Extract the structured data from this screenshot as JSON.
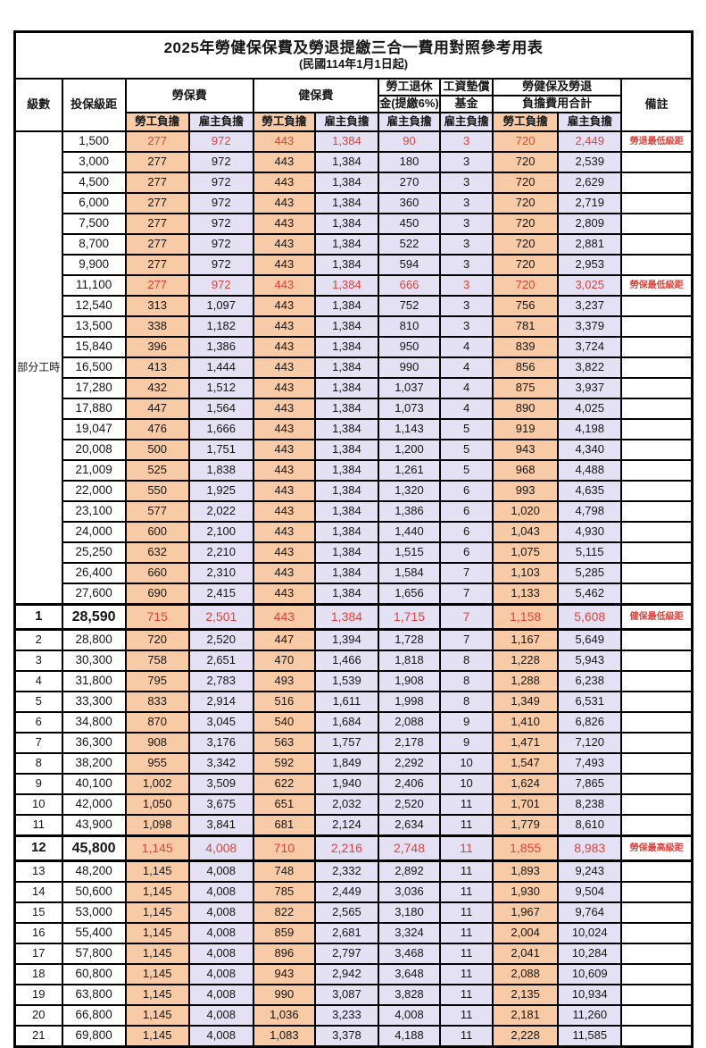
{
  "title": "2025年勞健保保費及勞退提繳三合一費用對照參考用表",
  "subtitle": "(民國114年1月1日起)",
  "colors": {
    "employee_fill": "#F8CBA6",
    "employer_fill": "#E3E1F3",
    "highlight_red": "#E0433D",
    "border": "#000000"
  },
  "header": {
    "level": "級數",
    "bracket": "投保級距",
    "labor_insurance": "勞保費",
    "health_insurance": "健保費",
    "pension_line1": "勞工退休",
    "pension_line2": "金(提繳6%)",
    "wage_fund_line1": "工資墊償",
    "wage_fund_line2": "基金",
    "total_line1": "勞健保及勞退",
    "total_line2": "負擔費用合計",
    "employee_share": "勞工負擔",
    "employer_share": "雇主負擔",
    "remarks": "備註"
  },
  "part_time_label": "部分工時",
  "part_time_row_count": 23,
  "rows": [
    {
      "level": "",
      "bracket": "1,500",
      "values": [
        "277",
        "972",
        "443",
        "1,384",
        "90",
        "3",
        "720",
        "2,449"
      ],
      "note": "勞退最低級距",
      "red": true,
      "big": false
    },
    {
      "level": "",
      "bracket": "3,000",
      "values": [
        "277",
        "972",
        "443",
        "1,384",
        "180",
        "3",
        "720",
        "2,539"
      ],
      "note": "",
      "red": false,
      "big": false
    },
    {
      "level": "",
      "bracket": "4,500",
      "values": [
        "277",
        "972",
        "443",
        "1,384",
        "270",
        "3",
        "720",
        "2,629"
      ],
      "note": "",
      "red": false,
      "big": false
    },
    {
      "level": "",
      "bracket": "6,000",
      "values": [
        "277",
        "972",
        "443",
        "1,384",
        "360",
        "3",
        "720",
        "2,719"
      ],
      "note": "",
      "red": false,
      "big": false
    },
    {
      "level": "",
      "bracket": "7,500",
      "values": [
        "277",
        "972",
        "443",
        "1,384",
        "450",
        "3",
        "720",
        "2,809"
      ],
      "note": "",
      "red": false,
      "big": false
    },
    {
      "level": "",
      "bracket": "8,700",
      "values": [
        "277",
        "972",
        "443",
        "1,384",
        "522",
        "3",
        "720",
        "2,881"
      ],
      "note": "",
      "red": false,
      "big": false
    },
    {
      "level": "",
      "bracket": "9,900",
      "values": [
        "277",
        "972",
        "443",
        "1,384",
        "594",
        "3",
        "720",
        "2,953"
      ],
      "note": "",
      "red": false,
      "big": false
    },
    {
      "level": "",
      "bracket": "11,100",
      "values": [
        "277",
        "972",
        "443",
        "1,384",
        "666",
        "3",
        "720",
        "3,025"
      ],
      "note": "勞保最低級距",
      "red": true,
      "big": false
    },
    {
      "level": "",
      "bracket": "12,540",
      "values": [
        "313",
        "1,097",
        "443",
        "1,384",
        "752",
        "3",
        "756",
        "3,237"
      ],
      "note": "",
      "red": false,
      "big": false
    },
    {
      "level": "",
      "bracket": "13,500",
      "values": [
        "338",
        "1,182",
        "443",
        "1,384",
        "810",
        "3",
        "781",
        "3,379"
      ],
      "note": "",
      "red": false,
      "big": false
    },
    {
      "level": "",
      "bracket": "15,840",
      "values": [
        "396",
        "1,386",
        "443",
        "1,384",
        "950",
        "4",
        "839",
        "3,724"
      ],
      "note": "",
      "red": false,
      "big": false
    },
    {
      "level": "",
      "bracket": "16,500",
      "values": [
        "413",
        "1,444",
        "443",
        "1,384",
        "990",
        "4",
        "856",
        "3,822"
      ],
      "note": "",
      "red": false,
      "big": false
    },
    {
      "level": "",
      "bracket": "17,280",
      "values": [
        "432",
        "1,512",
        "443",
        "1,384",
        "1,037",
        "4",
        "875",
        "3,937"
      ],
      "note": "",
      "red": false,
      "big": false
    },
    {
      "level": "",
      "bracket": "17,880",
      "values": [
        "447",
        "1,564",
        "443",
        "1,384",
        "1,073",
        "4",
        "890",
        "4,025"
      ],
      "note": "",
      "red": false,
      "big": false
    },
    {
      "level": "",
      "bracket": "19,047",
      "values": [
        "476",
        "1,666",
        "443",
        "1,384",
        "1,143",
        "5",
        "919",
        "4,198"
      ],
      "note": "",
      "red": false,
      "big": false
    },
    {
      "level": "",
      "bracket": "20,008",
      "values": [
        "500",
        "1,751",
        "443",
        "1,384",
        "1,200",
        "5",
        "943",
        "4,340"
      ],
      "note": "",
      "red": false,
      "big": false
    },
    {
      "level": "",
      "bracket": "21,009",
      "values": [
        "525",
        "1,838",
        "443",
        "1,384",
        "1,261",
        "5",
        "968",
        "4,488"
      ],
      "note": "",
      "red": false,
      "big": false
    },
    {
      "level": "",
      "bracket": "22,000",
      "values": [
        "550",
        "1,925",
        "443",
        "1,384",
        "1,320",
        "6",
        "993",
        "4,635"
      ],
      "note": "",
      "red": false,
      "big": false
    },
    {
      "level": "",
      "bracket": "23,100",
      "values": [
        "577",
        "2,022",
        "443",
        "1,384",
        "1,386",
        "6",
        "1,020",
        "4,798"
      ],
      "note": "",
      "red": false,
      "big": false
    },
    {
      "level": "",
      "bracket": "24,000",
      "values": [
        "600",
        "2,100",
        "443",
        "1,384",
        "1,440",
        "6",
        "1,043",
        "4,930"
      ],
      "note": "",
      "red": false,
      "big": false
    },
    {
      "level": "",
      "bracket": "25,250",
      "values": [
        "632",
        "2,210",
        "443",
        "1,384",
        "1,515",
        "6",
        "1,075",
        "5,115"
      ],
      "note": "",
      "red": false,
      "big": false
    },
    {
      "level": "",
      "bracket": "26,400",
      "values": [
        "660",
        "2,310",
        "443",
        "1,384",
        "1,584",
        "7",
        "1,103",
        "5,285"
      ],
      "note": "",
      "red": false,
      "big": false
    },
    {
      "level": "",
      "bracket": "27,600",
      "values": [
        "690",
        "2,415",
        "443",
        "1,384",
        "1,656",
        "7",
        "1,133",
        "5,462"
      ],
      "note": "",
      "red": false,
      "big": false
    },
    {
      "level": "1",
      "bracket": "28,590",
      "values": [
        "715",
        "2,501",
        "443",
        "1,384",
        "1,715",
        "7",
        "1,158",
        "5,608"
      ],
      "note": "健保最低級距",
      "red": true,
      "big": true
    },
    {
      "level": "2",
      "bracket": "28,800",
      "values": [
        "720",
        "2,520",
        "447",
        "1,394",
        "1,728",
        "7",
        "1,167",
        "5,649"
      ],
      "note": "",
      "red": false,
      "big": false
    },
    {
      "level": "3",
      "bracket": "30,300",
      "values": [
        "758",
        "2,651",
        "470",
        "1,466",
        "1,818",
        "8",
        "1,228",
        "5,943"
      ],
      "note": "",
      "red": false,
      "big": false
    },
    {
      "level": "4",
      "bracket": "31,800",
      "values": [
        "795",
        "2,783",
        "493",
        "1,539",
        "1,908",
        "8",
        "1,288",
        "6,238"
      ],
      "note": "",
      "red": false,
      "big": false
    },
    {
      "level": "5",
      "bracket": "33,300",
      "values": [
        "833",
        "2,914",
        "516",
        "1,611",
        "1,998",
        "8",
        "1,349",
        "6,531"
      ],
      "note": "",
      "red": false,
      "big": false
    },
    {
      "level": "6",
      "bracket": "34,800",
      "values": [
        "870",
        "3,045",
        "540",
        "1,684",
        "2,088",
        "9",
        "1,410",
        "6,826"
      ],
      "note": "",
      "red": false,
      "big": false
    },
    {
      "level": "7",
      "bracket": "36,300",
      "values": [
        "908",
        "3,176",
        "563",
        "1,757",
        "2,178",
        "9",
        "1,471",
        "7,120"
      ],
      "note": "",
      "red": false,
      "big": false
    },
    {
      "level": "8",
      "bracket": "38,200",
      "values": [
        "955",
        "3,342",
        "592",
        "1,849",
        "2,292",
        "10",
        "1,547",
        "7,493"
      ],
      "note": "",
      "red": false,
      "big": false
    },
    {
      "level": "9",
      "bracket": "40,100",
      "values": [
        "1,002",
        "3,509",
        "622",
        "1,940",
        "2,406",
        "10",
        "1,624",
        "7,865"
      ],
      "note": "",
      "red": false,
      "big": false
    },
    {
      "level": "10",
      "bracket": "42,000",
      "values": [
        "1,050",
        "3,675",
        "651",
        "2,032",
        "2,520",
        "11",
        "1,701",
        "8,238"
      ],
      "note": "",
      "red": false,
      "big": false
    },
    {
      "level": "11",
      "bracket": "43,900",
      "values": [
        "1,098",
        "3,841",
        "681",
        "2,124",
        "2,634",
        "11",
        "1,779",
        "8,610"
      ],
      "note": "",
      "red": false,
      "big": false
    },
    {
      "level": "12",
      "bracket": "45,800",
      "values": [
        "1,145",
        "4,008",
        "710",
        "2,216",
        "2,748",
        "11",
        "1,855",
        "8,983"
      ],
      "note": "勞保最高級距",
      "red": true,
      "big": true
    },
    {
      "level": "13",
      "bracket": "48,200",
      "values": [
        "1,145",
        "4,008",
        "748",
        "2,332",
        "2,892",
        "11",
        "1,893",
        "9,243"
      ],
      "note": "",
      "red": false,
      "big": false
    },
    {
      "level": "14",
      "bracket": "50,600",
      "values": [
        "1,145",
        "4,008",
        "785",
        "2,449",
        "3,036",
        "11",
        "1,930",
        "9,504"
      ],
      "note": "",
      "red": false,
      "big": false
    },
    {
      "level": "15",
      "bracket": "53,000",
      "values": [
        "1,145",
        "4,008",
        "822",
        "2,565",
        "3,180",
        "11",
        "1,967",
        "9,764"
      ],
      "note": "",
      "red": false,
      "big": false
    },
    {
      "level": "16",
      "bracket": "55,400",
      "values": [
        "1,145",
        "4,008",
        "859",
        "2,681",
        "3,324",
        "11",
        "2,004",
        "10,024"
      ],
      "note": "",
      "red": false,
      "big": false
    },
    {
      "level": "17",
      "bracket": "57,800",
      "values": [
        "1,145",
        "4,008",
        "896",
        "2,797",
        "3,468",
        "11",
        "2,041",
        "10,284"
      ],
      "note": "",
      "red": false,
      "big": false
    },
    {
      "level": "18",
      "bracket": "60,800",
      "values": [
        "1,145",
        "4,008",
        "943",
        "2,942",
        "3,648",
        "11",
        "2,088",
        "10,609"
      ],
      "note": "",
      "red": false,
      "big": false
    },
    {
      "level": "19",
      "bracket": "63,800",
      "values": [
        "1,145",
        "4,008",
        "990",
        "3,087",
        "3,828",
        "11",
        "2,135",
        "10,934"
      ],
      "note": "",
      "red": false,
      "big": false
    },
    {
      "level": "20",
      "bracket": "66,800",
      "values": [
        "1,145",
        "4,008",
        "1,036",
        "3,233",
        "4,008",
        "11",
        "2,181",
        "11,260"
      ],
      "note": "",
      "red": false,
      "big": false
    },
    {
      "level": "21",
      "bracket": "69,800",
      "values": [
        "1,145",
        "4,008",
        "1,083",
        "3,378",
        "4,188",
        "11",
        "2,228",
        "11,585"
      ],
      "note": "",
      "red": false,
      "big": false
    }
  ]
}
